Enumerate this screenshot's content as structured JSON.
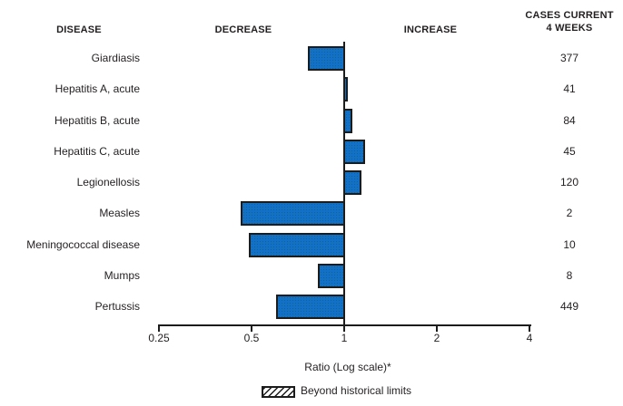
{
  "header": {
    "disease_column": "DISEASE",
    "decrease": "DECREASE",
    "increase": "INCREASE",
    "cases_line1": "CASES CURRENT",
    "cases_line2": "4 WEEKS"
  },
  "chart_data": {
    "type": "bar",
    "orientation": "horizontal",
    "scale": "log",
    "title": "",
    "xlabel": "Ratio (Log scale)*",
    "axis": {
      "label": "Ratio (Log scale)*",
      "ticks": [
        0.25,
        0.5,
        1,
        2,
        4
      ],
      "tick_labels": [
        "0.25",
        "0.5",
        "1",
        "2",
        "4"
      ],
      "range": [
        0.25,
        4
      ],
      "baseline": 1
    },
    "rows": [
      {
        "disease": "Giardiasis",
        "ratio": 0.76,
        "direction": "decrease",
        "cases_current_4_weeks": 377,
        "beyond_historical_limits": false
      },
      {
        "disease": "Hepatitis A, acute",
        "ratio": 1.02,
        "direction": "increase",
        "cases_current_4_weeks": 41,
        "beyond_historical_limits": false
      },
      {
        "disease": "Hepatitis B, acute",
        "ratio": 1.06,
        "direction": "increase",
        "cases_current_4_weeks": 84,
        "beyond_historical_limits": false
      },
      {
        "disease": "Hepatitis C, acute",
        "ratio": 1.17,
        "direction": "increase",
        "cases_current_4_weeks": 45,
        "beyond_historical_limits": false
      },
      {
        "disease": "Legionellosis",
        "ratio": 1.14,
        "direction": "increase",
        "cases_current_4_weeks": 120,
        "beyond_historical_limits": false
      },
      {
        "disease": "Measles",
        "ratio": 0.46,
        "direction": "decrease",
        "cases_current_4_weeks": 2,
        "beyond_historical_limits": false
      },
      {
        "disease": "Meningococcal disease",
        "ratio": 0.49,
        "direction": "decrease",
        "cases_current_4_weeks": 10,
        "beyond_historical_limits": false
      },
      {
        "disease": "Mumps",
        "ratio": 0.82,
        "direction": "decrease",
        "cases_current_4_weeks": 8,
        "beyond_historical_limits": false
      },
      {
        "disease": "Pertussis",
        "ratio": 0.6,
        "direction": "decrease",
        "cases_current_4_weeks": 449,
        "beyond_historical_limits": false
      }
    ],
    "legend": [
      {
        "label": "Beyond historical limits",
        "swatch": "hatched"
      }
    ],
    "colors": {
      "bar_fill": "#1271c6",
      "bar_border": "#1c1c1c",
      "text": "#231f20",
      "background": "#ffffff"
    }
  }
}
